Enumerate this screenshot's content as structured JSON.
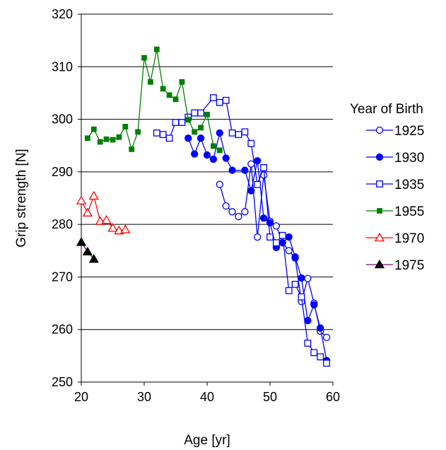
{
  "chart_data": {
    "type": "line",
    "xlabel": "Age [yr]",
    "ylabel": "Grip strength [N]",
    "xlim": [
      20,
      60
    ],
    "ylim": [
      250,
      320
    ],
    "x_ticks": [
      "20",
      "30",
      "40",
      "50",
      "60"
    ],
    "y_ticks": [
      "250",
      "260",
      "270",
      "280",
      "290",
      "300",
      "310",
      "320"
    ],
    "grid": "horizontal",
    "legend_title": "Year of Birth",
    "legend_position": "right",
    "series": [
      {
        "name": "1925",
        "color": "#0000ff",
        "marker": "circle-open",
        "points": [
          [
            42,
            287.6
          ],
          [
            43,
            283.5
          ],
          [
            44,
            282.4
          ],
          [
            45,
            281.5
          ],
          [
            46,
            282.4
          ],
          [
            47,
            291.5
          ],
          [
            48,
            277.6
          ],
          [
            49,
            289.4
          ],
          [
            50,
            280.6
          ],
          [
            51,
            279.7
          ],
          [
            52,
            276.5
          ],
          [
            53,
            275.0
          ],
          [
            54,
            273.6
          ],
          [
            55,
            265.3
          ],
          [
            56,
            269.7
          ],
          [
            57,
            265.0
          ],
          [
            58,
            259.7
          ],
          [
            59,
            258.5
          ]
        ]
      },
      {
        "name": "1930",
        "color": "#0000ff",
        "marker": "circle-filled",
        "points": [
          [
            37,
            296.4
          ],
          [
            38,
            293.4
          ],
          [
            39,
            296.4
          ],
          [
            40,
            293.2
          ],
          [
            41,
            292.4
          ],
          [
            42,
            297.4
          ],
          [
            43,
            292.6
          ],
          [
            44,
            290.3
          ],
          [
            46,
            290.3
          ],
          [
            47,
            286.4
          ],
          [
            48,
            292.1
          ],
          [
            49,
            281.2
          ],
          [
            50,
            280.3
          ],
          [
            51,
            275.6
          ],
          [
            52,
            276.5
          ],
          [
            53,
            277.6
          ],
          [
            54,
            273.8
          ],
          [
            55,
            269.8
          ],
          [
            56,
            261.7
          ],
          [
            57,
            264.7
          ],
          [
            58,
            260.3
          ],
          [
            59,
            254.1
          ]
        ]
      },
      {
        "name": "1935",
        "color": "#0000ff",
        "marker": "square-open",
        "points": [
          [
            32,
            297.4
          ],
          [
            33,
            297.1
          ],
          [
            34,
            296.4
          ],
          [
            35,
            299.4
          ],
          [
            36,
            299.4
          ],
          [
            37,
            300.4
          ],
          [
            38,
            301.2
          ],
          [
            39,
            301.2
          ],
          [
            41,
            304.1
          ],
          [
            42,
            303.2
          ],
          [
            43,
            303.6
          ],
          [
            44,
            297.4
          ],
          [
            45,
            297.1
          ],
          [
            46,
            297.6
          ],
          [
            47,
            295.4
          ],
          [
            48,
            287.6
          ],
          [
            49,
            290.8
          ],
          [
            50,
            277.6
          ],
          [
            51,
            276.5
          ],
          [
            52,
            277.9
          ],
          [
            53,
            267.4
          ],
          [
            54,
            268.6
          ],
          [
            55,
            266.2
          ],
          [
            56,
            257.4
          ],
          [
            57,
            255.6
          ],
          [
            58,
            254.8
          ],
          [
            59,
            253.6
          ]
        ]
      },
      {
        "name": "1955",
        "color": "#008000",
        "marker": "square-filled",
        "points": [
          [
            21,
            296.4
          ],
          [
            22,
            298.1
          ],
          [
            23,
            295.7
          ],
          [
            24,
            296.2
          ],
          [
            25,
            296.1
          ],
          [
            26,
            296.6
          ],
          [
            27,
            298.6
          ],
          [
            28,
            294.3
          ],
          [
            29,
            297.6
          ],
          [
            30,
            311.7
          ],
          [
            31,
            307.1
          ],
          [
            32,
            313.3
          ],
          [
            33,
            305.8
          ],
          [
            34,
            304.6
          ],
          [
            35,
            303.8
          ],
          [
            36,
            307.1
          ],
          [
            37,
            299.9
          ],
          [
            38,
            297.6
          ],
          [
            39,
            298.4
          ],
          [
            40,
            300.9
          ],
          [
            41,
            294.9
          ],
          [
            42,
            294.1
          ]
        ]
      },
      {
        "name": "1970",
        "color": "#ff0000",
        "marker": "triangle-open",
        "points": [
          [
            20,
            284.5
          ],
          [
            21,
            282.2
          ],
          [
            22,
            285.4
          ],
          [
            23,
            280.6
          ],
          [
            24,
            280.8
          ],
          [
            25,
            279.3
          ],
          [
            26,
            278.8
          ],
          [
            27,
            279.0
          ]
        ]
      },
      {
        "name": "1975",
        "color": "#800080",
        "marker_color": "#000000",
        "marker": "triangle-filled",
        "points": [
          [
            20,
            276.6
          ],
          [
            21,
            274.8
          ],
          [
            22,
            273.4
          ]
        ]
      }
    ]
  }
}
